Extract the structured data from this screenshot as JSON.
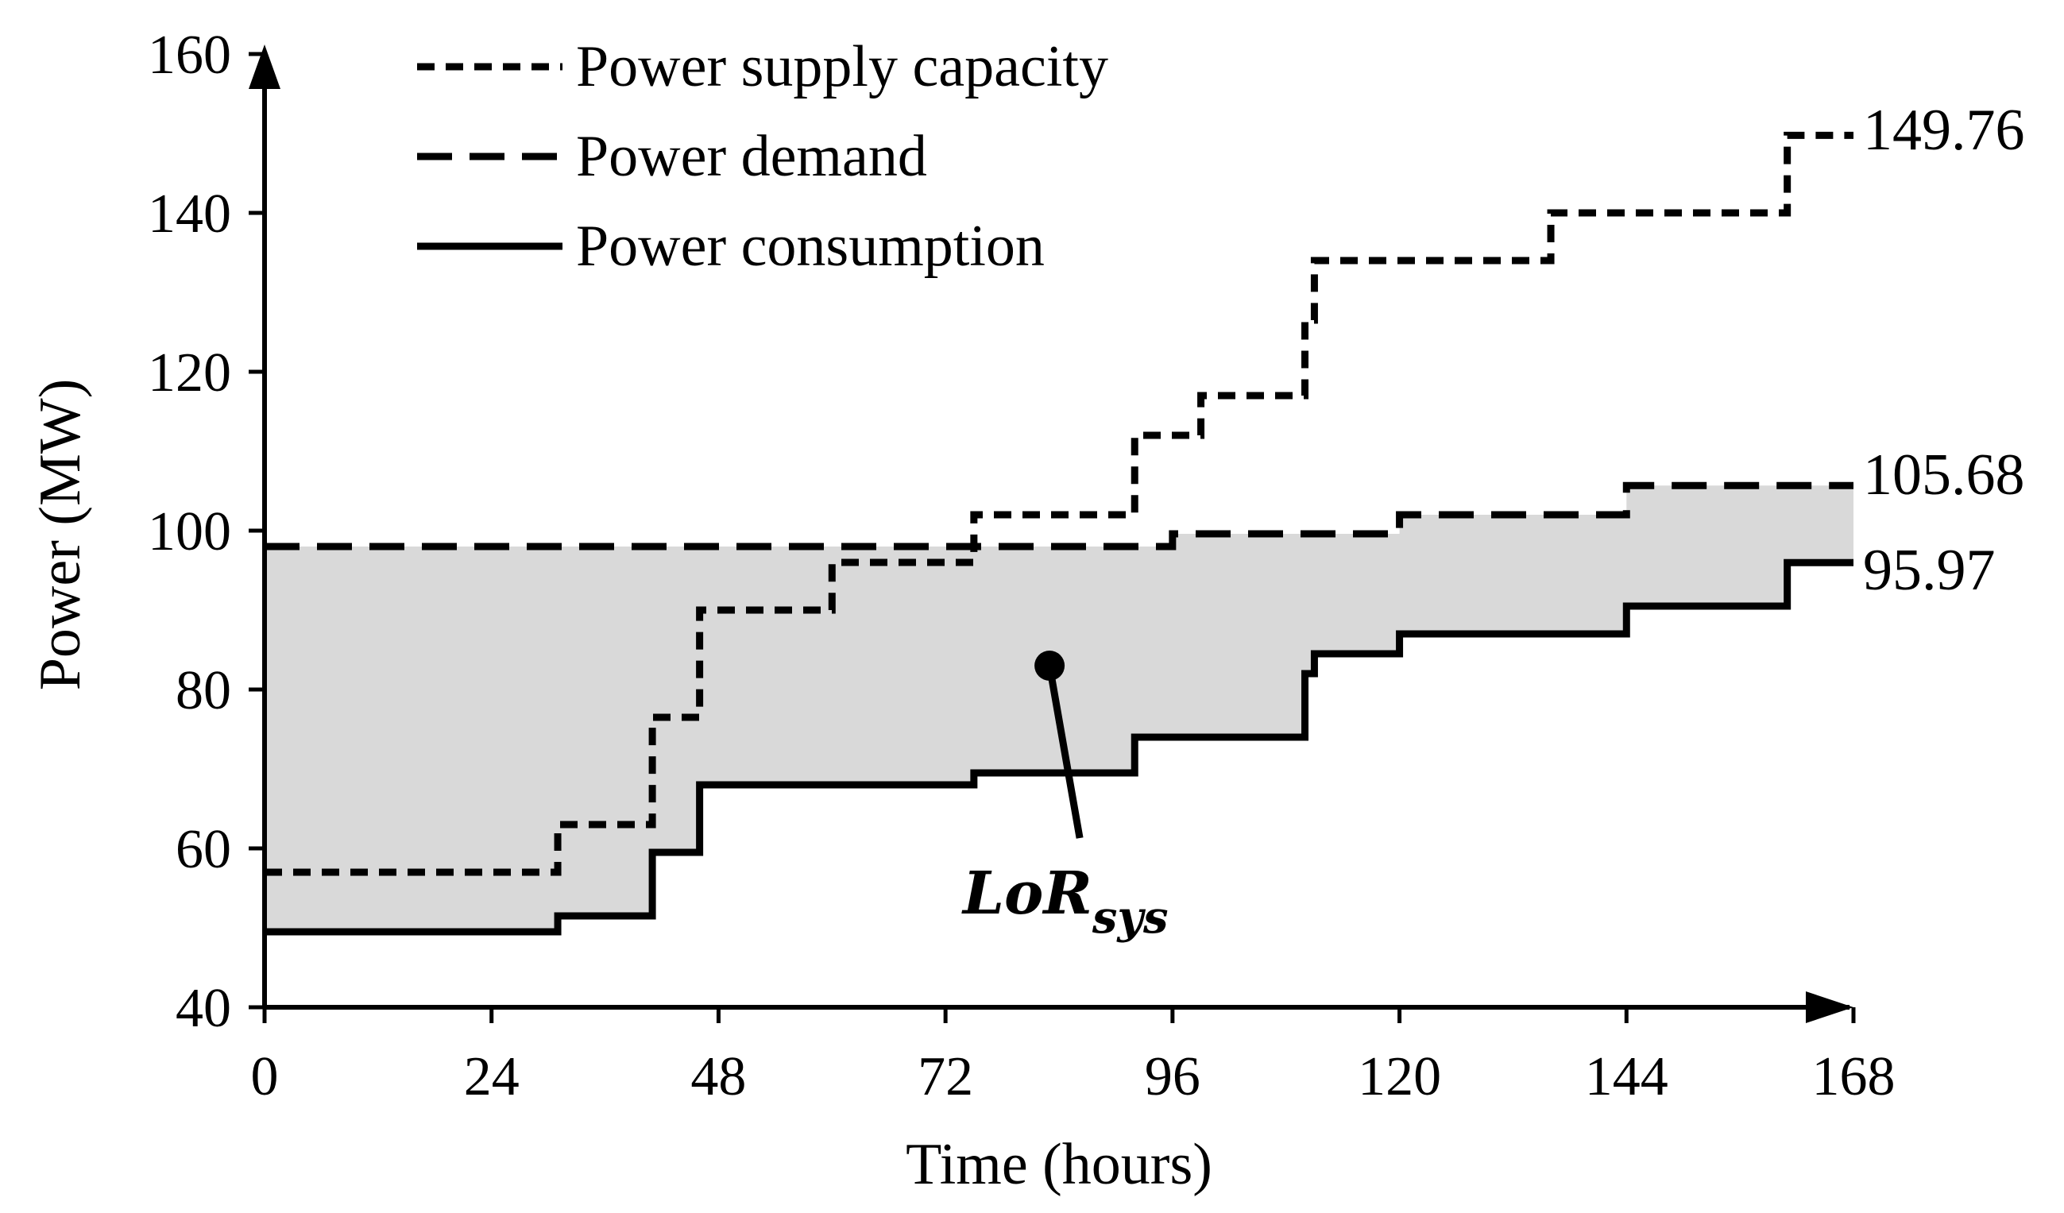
{
  "chart_data": {
    "type": "line",
    "step": true,
    "title": "",
    "xlabel": "Time (hours)",
    "ylabel": "Power (MW)",
    "xlim": [
      0,
      168
    ],
    "ylim": [
      40,
      160
    ],
    "xticks": [
      0,
      24,
      48,
      72,
      96,
      120,
      144,
      168
    ],
    "yticks": [
      40,
      60,
      80,
      100,
      120,
      140,
      160
    ],
    "grid": false,
    "legend_position": "top-left",
    "series": [
      {
        "name": "Power supply capacity",
        "style": "dotted",
        "x": [
          0,
          31,
          41,
          46,
          60,
          75,
          92,
          99,
          110,
          111,
          136,
          161,
          168
        ],
        "values": [
          57,
          63,
          76.5,
          90,
          96,
          102,
          112,
          117,
          126.5,
          134,
          140,
          149.76,
          149.76
        ],
        "end_label": "149.76"
      },
      {
        "name": "Power demand",
        "style": "dashed",
        "x": [
          0,
          75,
          96,
          120,
          144,
          168
        ],
        "values": [
          98,
          98,
          99.6,
          102,
          105.68,
          105.68
        ],
        "end_label": "105.68"
      },
      {
        "name": "Power consumption",
        "style": "solid",
        "x": [
          0,
          31,
          41,
          46,
          75,
          92,
          110,
          111,
          120,
          144,
          161,
          168
        ],
        "values": [
          49.5,
          51.5,
          59.5,
          68,
          69.5,
          74,
          82,
          84.5,
          87,
          90.5,
          95.97,
          95.97
        ],
        "end_label": "95.97"
      }
    ],
    "shaded_region": {
      "between": [
        "Power demand",
        "Power consumption"
      ],
      "color": "#d9d9d9"
    },
    "annotation": {
      "text_main": "LoR",
      "text_sub": "sys",
      "point": [
        83,
        83
      ]
    }
  }
}
